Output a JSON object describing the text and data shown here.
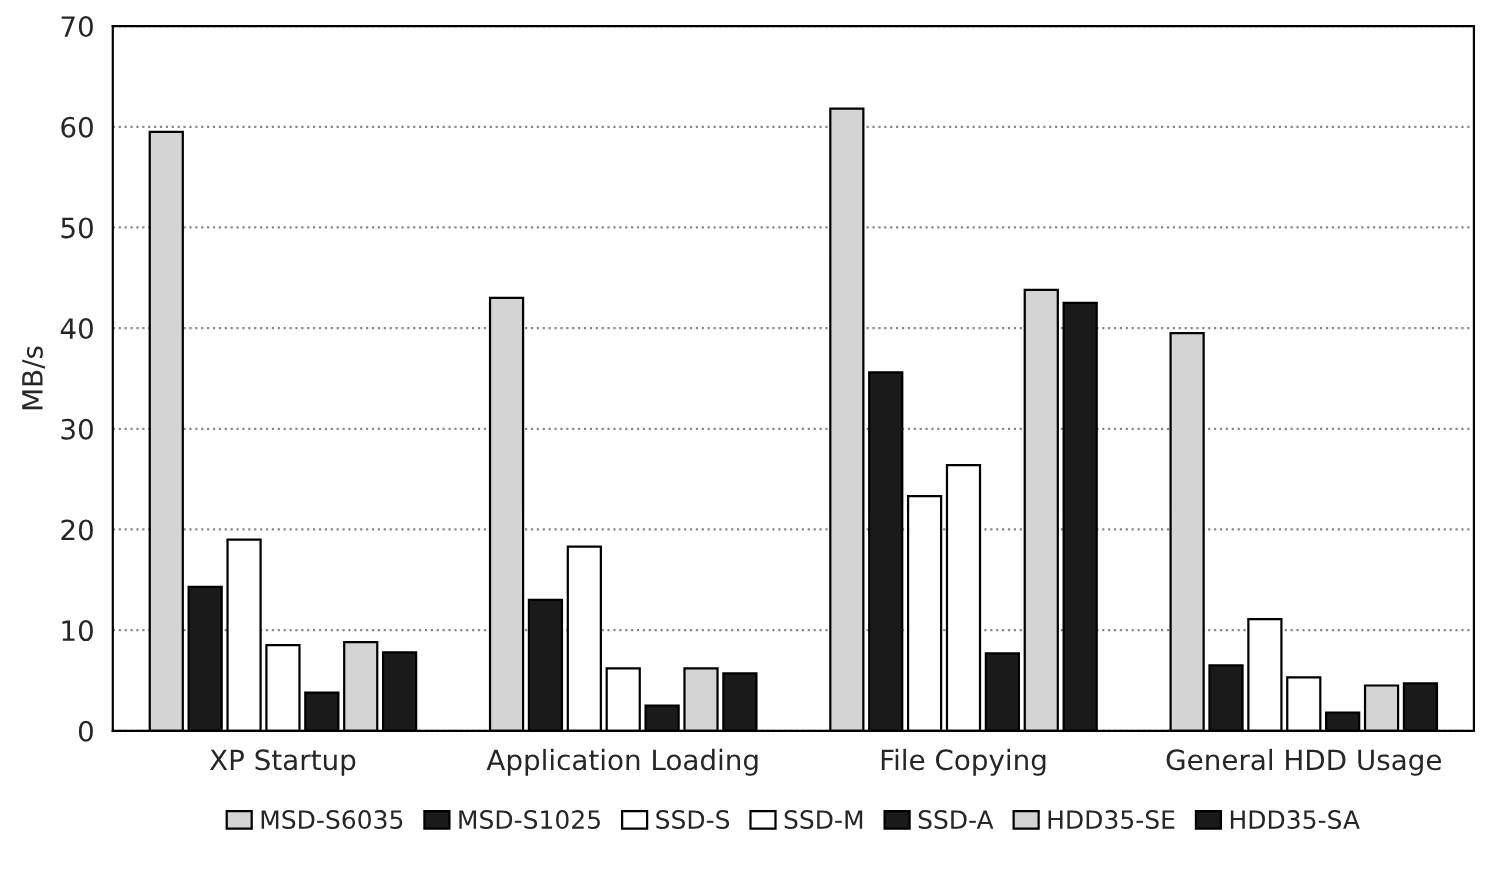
{
  "chart_data": {
    "type": "bar",
    "ylabel": "MB/s",
    "categories": [
      "XP Startup",
      "Application Loading",
      "File Copying",
      "General HDD Usage"
    ],
    "series": [
      {
        "name": "MSD-S6035",
        "color": "#d4d4d4",
        "values": [
          59.5,
          43,
          61.8,
          39.5
        ]
      },
      {
        "name": "MSD-S1025",
        "color": "#1a1a1a",
        "values": [
          14.3,
          13,
          35.6,
          6.5
        ]
      },
      {
        "name": "SSD-S",
        "color": "#ffffff",
        "values": [
          19,
          18.3,
          23.3,
          11.1
        ]
      },
      {
        "name": "SSD-M",
        "color": "#ffffff",
        "values": [
          8.5,
          6.2,
          26.4,
          5.3
        ]
      },
      {
        "name": "SSD-A",
        "color": "#1a1a1a",
        "values": [
          3.8,
          2.5,
          7.7,
          1.8
        ]
      },
      {
        "name": "HDD35-SE",
        "color": "#d4d4d4",
        "values": [
          8.8,
          6.2,
          43.8,
          4.5
        ]
      },
      {
        "name": "HDD35-SA",
        "color": "#1a1a1a",
        "values": [
          7.8,
          5.7,
          42.5,
          4.7
        ]
      }
    ],
    "ylim": [
      0,
      70
    ],
    "yticks": [
      0,
      10,
      20,
      30,
      40,
      50,
      60,
      70
    ],
    "grid": "y",
    "legend": "bottom"
  }
}
